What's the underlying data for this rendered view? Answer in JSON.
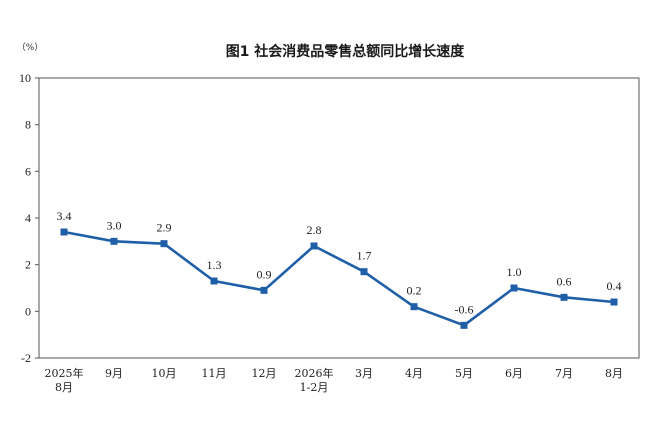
{
  "chart_data": {
    "type": "line",
    "title": "图1  社会消费品零售总额同比增长速度",
    "unit": "（%）",
    "categories": [
      [
        "2025年",
        "8月"
      ],
      [
        "9月"
      ],
      [
        "10月"
      ],
      [
        "11月"
      ],
      [
        "12月"
      ],
      [
        "2026年",
        "1-2月"
      ],
      [
        "3月"
      ],
      [
        "4月"
      ],
      [
        "5月"
      ],
      [
        "6月"
      ],
      [
        "7月"
      ],
      [
        "8月"
      ]
    ],
    "values": [
      3.4,
      3.0,
      2.9,
      1.3,
      0.9,
      2.8,
      1.7,
      0.2,
      -0.6,
      1.0,
      0.6,
      0.4
    ],
    "data_labels": [
      "3.4",
      "3.0",
      "2.9",
      "1.3",
      "0.9",
      "2.8",
      "1.7",
      "0.2",
      "-0.6",
      "1.0",
      "0.6",
      "0.4"
    ],
    "ylim": [
      -2,
      10
    ],
    "yticks": [
      -2,
      0,
      2,
      4,
      6,
      8,
      10
    ],
    "grid": false,
    "legend": "none",
    "line_color": "#1f5fa8"
  }
}
